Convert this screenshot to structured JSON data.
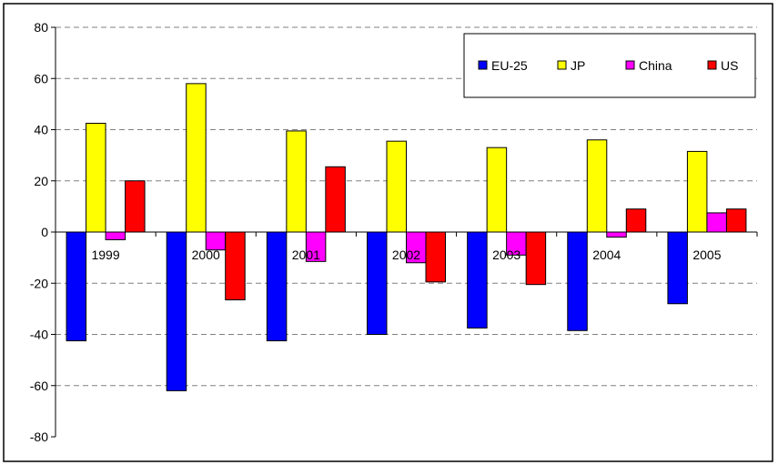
{
  "chart_data": {
    "type": "bar",
    "categories": [
      "1999",
      "2000",
      "2001",
      "2002",
      "2003",
      "2004",
      "2005"
    ],
    "series": [
      {
        "name": "EU-25",
        "color": "#0000FF",
        "values": [
          -42.5,
          -62,
          -42.5,
          -40,
          -37.5,
          -38.5,
          -28
        ]
      },
      {
        "name": "JP",
        "color": "#FFFF00",
        "values": [
          42.5,
          58,
          39.5,
          35.5,
          33,
          36,
          31.5
        ]
      },
      {
        "name": "China",
        "color": "#FF00FF",
        "values": [
          -3,
          -7,
          -11.5,
          -12,
          -9,
          -2,
          7.5
        ]
      },
      {
        "name": "US",
        "color": "#FF0000",
        "values": [
          20,
          -26.5,
          25.5,
          -19.5,
          -20.5,
          9,
          9
        ]
      }
    ],
    "yticks": [
      "80",
      "60",
      "40",
      "20",
      "0",
      "-20",
      "-40",
      "-60",
      "-80"
    ],
    "ylim": [
      -80,
      80
    ],
    "grid": true,
    "legend_position": "top-right",
    "title": "",
    "xlabel": "",
    "ylabel": ""
  }
}
